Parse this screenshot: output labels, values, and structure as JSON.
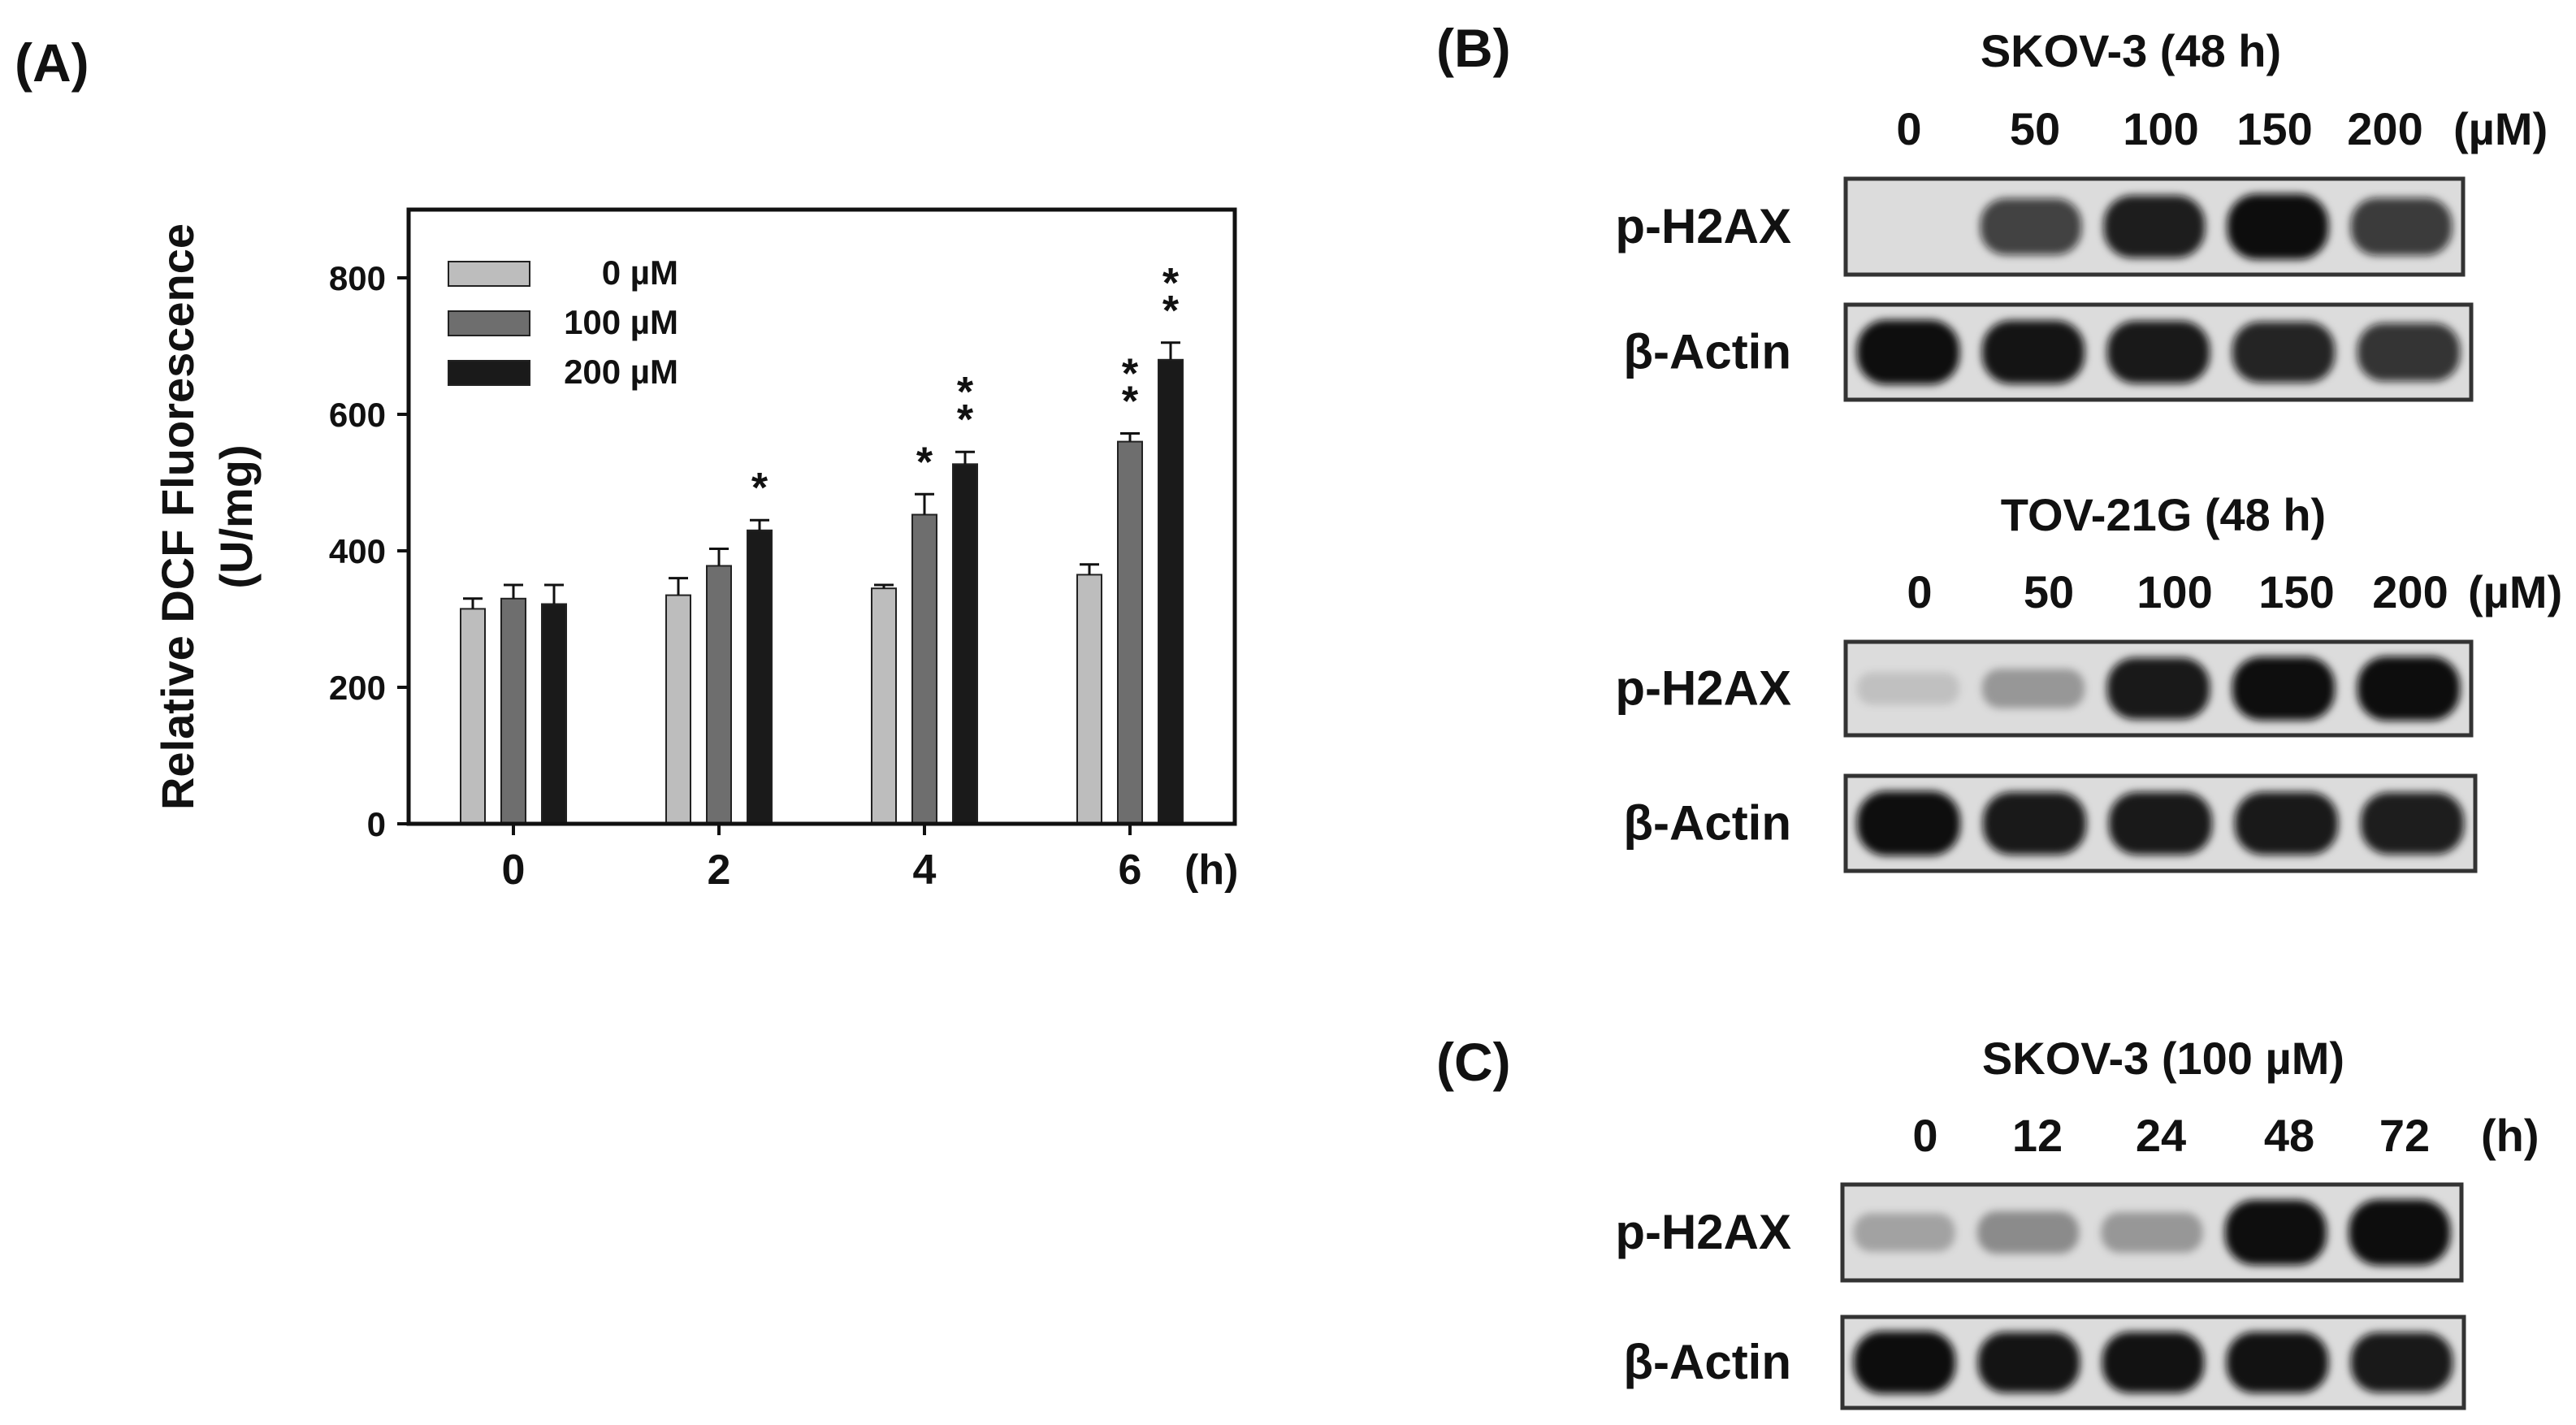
{
  "panels": {
    "a": {
      "label": "(A)",
      "chart_data": {
        "type": "bar",
        "categories": [
          "0",
          "2",
          "4",
          "6"
        ],
        "xlabel": "(h)",
        "ylabel_line1": "Relative DCF Fluorescence",
        "ylabel_line2": "(U/mg)",
        "ylim": [
          0,
          900
        ],
        "yticks": [
          0,
          200,
          400,
          600,
          800
        ],
        "legend_position": "top-left",
        "grid": false,
        "series": [
          {
            "name": "0 µM",
            "color": "#bdbdbd",
            "values": [
              315,
              335,
              345,
              365
            ],
            "errors": [
              15,
              25,
              5,
              15
            ],
            "significance": [
              "",
              "",
              "",
              ""
            ]
          },
          {
            "name": "100 µM",
            "color": "#6e6e6e",
            "values": [
              330,
              378,
              453,
              560
            ],
            "errors": [
              20,
              25,
              30,
              12
            ],
            "significance": [
              "",
              "",
              "*",
              "**"
            ]
          },
          {
            "name": "200 µM",
            "color": "#1a1a1a",
            "values": [
              322,
              430,
              527,
              680
            ],
            "errors": [
              28,
              15,
              18,
              25
            ],
            "significance": [
              "",
              "*",
              "**",
              "**"
            ]
          }
        ]
      }
    },
    "b": {
      "label": "(B)",
      "blots": [
        {
          "title": "SKOV-3 (48 h)",
          "lanes": [
            "0",
            "50",
            "100",
            "150",
            "200"
          ],
          "unit": "(µM)",
          "rows": [
            {
              "name": "p-H2AX",
              "intensities": [
                0.02,
                0.72,
                0.88,
                0.96,
                0.75
              ]
            },
            {
              "name": "β-Actin",
              "intensities": [
                0.95,
                0.92,
                0.9,
                0.85,
                0.78
              ]
            }
          ]
        },
        {
          "title": "TOV-21G (48 h)",
          "lanes": [
            "0",
            "50",
            "100",
            "150",
            "200"
          ],
          "unit": "(µM)",
          "rows": [
            {
              "name": "p-H2AX",
              "intensities": [
                0.12,
                0.3,
                0.9,
                0.95,
                0.97
              ]
            },
            {
              "name": "β-Actin",
              "intensities": [
                0.95,
                0.9,
                0.9,
                0.9,
                0.88
              ]
            }
          ]
        }
      ]
    },
    "c": {
      "label": "(C)",
      "blots": [
        {
          "title": "SKOV-3 (100 µM)",
          "lanes": [
            "0",
            "12",
            "24",
            "48",
            "72"
          ],
          "unit": "(h)",
          "rows": [
            {
              "name": "p-H2AX",
              "intensities": [
                0.25,
                0.35,
                0.3,
                0.95,
                0.97
              ]
            },
            {
              "name": "β-Actin",
              "intensities": [
                0.97,
                0.92,
                0.93,
                0.93,
                0.9
              ]
            }
          ]
        }
      ]
    }
  }
}
